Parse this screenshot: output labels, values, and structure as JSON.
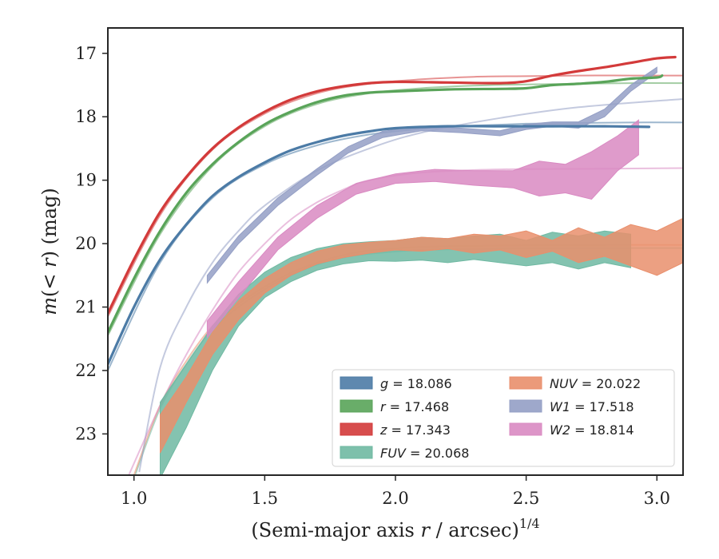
{
  "chart_data": {
    "type": "line",
    "xlabel": "(Semi-major axis r / arcsec)",
    "xlabel_parts": {
      "pre": "(Semi-major axis ",
      "var": "r",
      "post": " / arcsec)",
      "sup": "1/4"
    },
    "ylabel_parts": {
      "a": "m",
      "b": "(",
      "c": "< r",
      "d": ") (mag)"
    },
    "xlim": [
      0.9,
      3.1
    ],
    "ylim": [
      23.65,
      16.6
    ],
    "y_inverted": true,
    "x_ticks": [
      1.0,
      1.5,
      2.0,
      2.5,
      3.0
    ],
    "x_tick_labels": [
      "1.0",
      "1.5",
      "2.0",
      "2.5",
      "3.0"
    ],
    "y_ticks": [
      17,
      18,
      19,
      20,
      21,
      22,
      23
    ],
    "y_tick_labels": [
      "17",
      "18",
      "19",
      "20",
      "21",
      "22",
      "23"
    ],
    "grid": false,
    "legend_position": "lower-right",
    "colors": {
      "g": "#4c7ba6",
      "r": "#59a459",
      "z": "#d33a3a",
      "FUV": "#6fb9a2",
      "NUV": "#e98f6c",
      "W1": "#949fc5",
      "W2": "#d98ac2"
    },
    "series": [
      {
        "key": "g",
        "band": "g",
        "value": "18.086",
        "color": "#4c7ba6",
        "kind": "line",
        "x": [
          0.9,
          1.0,
          1.1,
          1.2,
          1.3,
          1.4,
          1.5,
          1.6,
          1.7,
          1.8,
          1.9,
          2.0,
          2.2,
          2.4,
          2.6,
          2.8,
          2.97
        ],
        "y": [
          21.9,
          21.0,
          20.25,
          19.7,
          19.25,
          18.95,
          18.72,
          18.53,
          18.4,
          18.3,
          18.23,
          18.18,
          18.15,
          18.15,
          18.15,
          18.15,
          18.16
        ]
      },
      {
        "key": "r",
        "band": "r",
        "value": "17.468",
        "color": "#59a459",
        "kind": "line",
        "x": [
          0.9,
          1.0,
          1.1,
          1.2,
          1.3,
          1.4,
          1.5,
          1.6,
          1.7,
          1.8,
          1.9,
          2.0,
          2.2,
          2.4,
          2.5,
          2.6,
          2.7,
          2.8,
          2.9,
          3.0,
          3.02
        ],
        "y": [
          21.4,
          20.55,
          19.8,
          19.2,
          18.75,
          18.4,
          18.12,
          17.92,
          17.77,
          17.67,
          17.62,
          17.6,
          17.57,
          17.56,
          17.55,
          17.5,
          17.48,
          17.45,
          17.4,
          17.38,
          17.35
        ]
      },
      {
        "key": "z",
        "band": "z",
        "value": "17.343",
        "color": "#d33a3a",
        "kind": "line",
        "x": [
          0.9,
          1.0,
          1.1,
          1.2,
          1.3,
          1.4,
          1.5,
          1.6,
          1.7,
          1.8,
          1.9,
          2.0,
          2.2,
          2.4,
          2.5,
          2.6,
          2.7,
          2.8,
          2.9,
          3.0,
          3.07
        ],
        "y": [
          21.1,
          20.25,
          19.5,
          18.95,
          18.5,
          18.17,
          17.92,
          17.73,
          17.6,
          17.52,
          17.47,
          17.45,
          17.46,
          17.47,
          17.44,
          17.35,
          17.28,
          17.22,
          17.15,
          17.08,
          17.06
        ]
      },
      {
        "key": "FUV",
        "band": "FUV",
        "value": "20.068",
        "color": "#6fb9a2",
        "kind": "band",
        "x": [
          1.1,
          1.2,
          1.3,
          1.4,
          1.5,
          1.6,
          1.7,
          1.8,
          1.9,
          2.0,
          2.1,
          2.2,
          2.3,
          2.4,
          2.5,
          2.6,
          2.7,
          2.8,
          2.9
        ],
        "y_low": [
          23.7,
          22.9,
          22.0,
          21.3,
          20.85,
          20.6,
          20.42,
          20.32,
          20.27,
          20.28,
          20.26,
          20.3,
          20.25,
          20.3,
          20.35,
          20.3,
          20.4,
          20.3,
          20.38
        ],
        "y_high": [
          22.5,
          21.9,
          21.3,
          20.8,
          20.45,
          20.22,
          20.08,
          20.0,
          19.97,
          19.95,
          19.9,
          19.92,
          19.88,
          19.85,
          19.95,
          19.82,
          19.88,
          19.8,
          19.85
        ]
      },
      {
        "key": "NUV",
        "band": "NUV",
        "value": "20.022",
        "color": "#e98f6c",
        "kind": "band",
        "x": [
          1.1,
          1.2,
          1.3,
          1.4,
          1.5,
          1.6,
          1.7,
          1.8,
          1.9,
          2.0,
          2.1,
          2.2,
          2.3,
          2.4,
          2.5,
          2.6,
          2.7,
          2.8,
          2.9,
          3.0,
          3.1
        ],
        "y_low": [
          23.3,
          22.5,
          21.75,
          21.2,
          20.78,
          20.5,
          20.32,
          20.22,
          20.15,
          20.1,
          20.12,
          20.08,
          20.15,
          20.1,
          20.22,
          20.12,
          20.3,
          20.2,
          20.35,
          20.5,
          20.3
        ],
        "y_high": [
          22.7,
          22.1,
          21.4,
          20.9,
          20.55,
          20.3,
          20.12,
          20.02,
          19.98,
          19.95,
          19.9,
          19.92,
          19.85,
          19.88,
          19.8,
          19.95,
          19.75,
          19.9,
          19.7,
          19.8,
          19.6
        ]
      },
      {
        "key": "W1",
        "band": "W1",
        "value": "17.518",
        "color": "#949fc5",
        "kind": "band",
        "x": [
          1.28,
          1.4,
          1.55,
          1.7,
          1.82,
          1.95,
          2.1,
          2.25,
          2.4,
          2.5,
          2.6,
          2.7,
          2.8,
          2.9,
          3.0
        ],
        "y_low": [
          20.62,
          20.0,
          19.4,
          18.92,
          18.57,
          18.33,
          18.22,
          18.25,
          18.3,
          18.2,
          18.15,
          18.18,
          18.0,
          17.6,
          17.3
        ],
        "y_high": [
          20.5,
          19.88,
          19.28,
          18.82,
          18.47,
          18.23,
          18.15,
          18.18,
          18.22,
          18.12,
          18.08,
          18.08,
          17.88,
          17.5,
          17.22
        ]
      },
      {
        "key": "W2",
        "band": "W2",
        "value": "18.814",
        "color": "#d98ac2",
        "kind": "band",
        "x": [
          1.28,
          1.4,
          1.55,
          1.7,
          1.85,
          2.0,
          2.15,
          2.3,
          2.45,
          2.55,
          2.65,
          2.75,
          2.85,
          2.93
        ],
        "y_low": [
          21.48,
          20.85,
          20.1,
          19.6,
          19.22,
          19.05,
          19.02,
          19.08,
          19.12,
          19.25,
          19.2,
          19.3,
          18.85,
          18.6
        ],
        "y_high": [
          21.22,
          20.6,
          19.9,
          19.4,
          19.05,
          18.9,
          18.83,
          18.85,
          18.85,
          18.7,
          18.75,
          18.55,
          18.3,
          18.05
        ]
      }
    ],
    "model_fits": [
      {
        "key": "g",
        "color": "#4c7ba6",
        "asymptote": 18.086,
        "x": [
          0.9,
          1.1,
          1.3,
          1.5,
          1.7,
          1.9,
          2.1,
          2.3,
          2.5,
          2.7,
          2.9,
          3.1
        ],
        "y": [
          22.0,
          20.3,
          19.28,
          18.75,
          18.45,
          18.28,
          18.19,
          18.14,
          18.11,
          18.1,
          18.09,
          18.09
        ]
      },
      {
        "key": "r",
        "color": "#59a459",
        "asymptote": 17.468,
        "x": [
          0.9,
          1.1,
          1.3,
          1.5,
          1.7,
          1.9,
          2.1,
          2.3,
          2.5,
          2.7,
          2.9,
          3.1
        ],
        "y": [
          21.45,
          19.85,
          18.78,
          18.15,
          17.8,
          17.63,
          17.55,
          17.51,
          17.49,
          17.48,
          17.47,
          17.47
        ]
      },
      {
        "key": "z",
        "color": "#d33a3a",
        "asymptote": 17.343,
        "x": [
          0.9,
          1.1,
          1.3,
          1.5,
          1.7,
          1.9,
          2.1,
          2.3,
          2.5,
          2.7,
          2.9,
          3.1
        ],
        "y": [
          21.15,
          19.55,
          18.52,
          17.95,
          17.63,
          17.48,
          17.41,
          17.37,
          17.36,
          17.35,
          17.35,
          17.35
        ]
      },
      {
        "key": "FUV",
        "color": "#6fb9a2",
        "asymptote": 20.068,
        "x": [
          1.0,
          1.1,
          1.2,
          1.3,
          1.4,
          1.5,
          1.6,
          1.7,
          1.8,
          1.9,
          2.1,
          2.4,
          2.8,
          3.1
        ],
        "y": [
          23.7,
          22.6,
          21.9,
          21.35,
          21.0,
          20.72,
          20.5,
          20.33,
          20.22,
          20.16,
          20.1,
          20.08,
          20.07,
          20.07
        ]
      },
      {
        "key": "NUV",
        "color": "#e98f6c",
        "asymptote": 20.022,
        "x": [
          1.0,
          1.1,
          1.2,
          1.3,
          1.4,
          1.5,
          1.6,
          1.7,
          1.8,
          1.9,
          2.1,
          2.4,
          2.8,
          3.1
        ],
        "y": [
          23.65,
          22.55,
          21.85,
          21.3,
          20.95,
          20.68,
          20.46,
          20.3,
          20.18,
          20.11,
          20.05,
          20.03,
          20.02,
          20.02
        ]
      },
      {
        "key": "W1",
        "color": "#949fc5",
        "asymptote": 17.518,
        "x": [
          1.02,
          1.1,
          1.2,
          1.3,
          1.4,
          1.5,
          1.7,
          1.9,
          2.1,
          2.4,
          2.7,
          3.1
        ],
        "y": [
          23.6,
          21.95,
          21.0,
          20.3,
          19.8,
          19.4,
          18.85,
          18.5,
          18.25,
          18.02,
          17.85,
          17.72
        ]
      },
      {
        "key": "W2",
        "color": "#d98ac2",
        "asymptote": 18.814,
        "x": [
          0.98,
          1.1,
          1.2,
          1.3,
          1.4,
          1.5,
          1.6,
          1.7,
          1.8,
          1.9,
          2.1,
          2.4,
          2.8,
          3.1
        ],
        "y": [
          23.65,
          22.55,
          21.75,
          21.05,
          20.45,
          20.0,
          19.62,
          19.35,
          19.15,
          19.0,
          18.88,
          18.83,
          18.82,
          18.81
        ]
      }
    ],
    "legend": {
      "columns": [
        [
          {
            "key": "g",
            "band": "g",
            "value": "18.086",
            "italic_band": true
          },
          {
            "key": "r",
            "band": "r",
            "value": "17.468",
            "italic_band": true
          },
          {
            "key": "z",
            "band": "z",
            "value": "17.343",
            "italic_band": true
          },
          {
            "key": "FUV",
            "band": "FUV",
            "value": "20.068",
            "italic_band": true
          }
        ],
        [
          {
            "key": "NUV",
            "band": "NUV",
            "value": "20.022",
            "italic_band": true
          },
          {
            "key": "W1",
            "band": "W1",
            "value": "17.518",
            "italic_band": true
          },
          {
            "key": "W2",
            "band": "W2",
            "value": "18.814",
            "italic_band": true
          }
        ]
      ]
    }
  }
}
